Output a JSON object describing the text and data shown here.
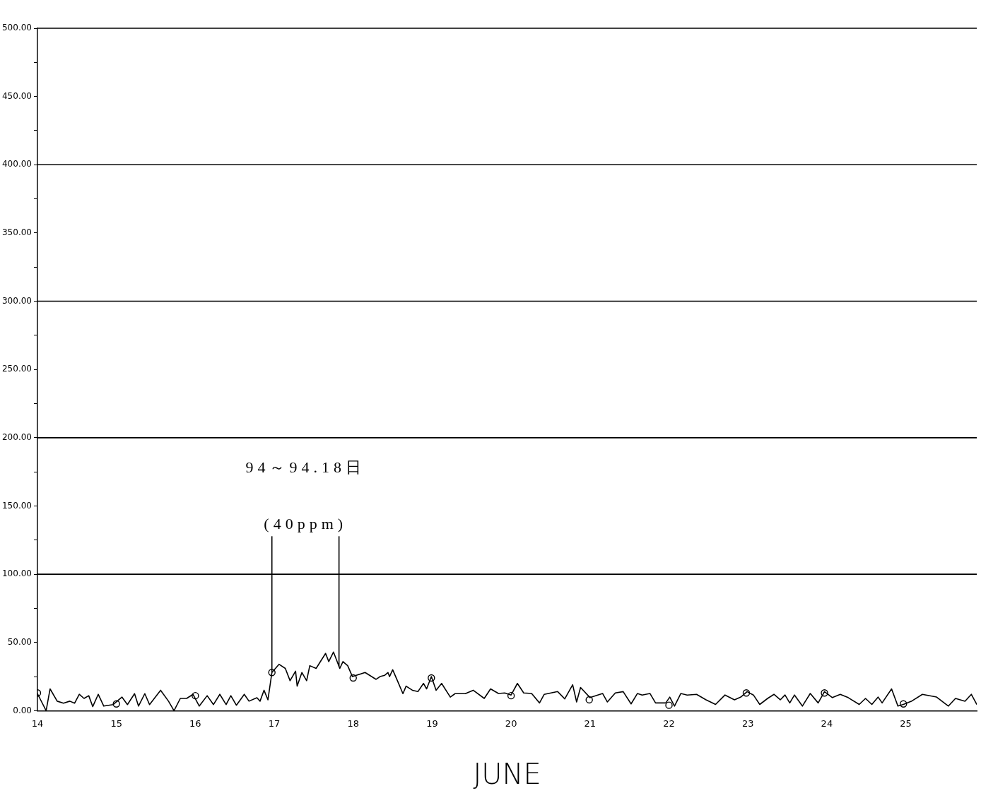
{
  "chart_data": {
    "type": "line",
    "xlabel": "JUNE",
    "xlim": [
      14,
      25.9
    ],
    "xticks": [
      14,
      15,
      16,
      17,
      18,
      19,
      20,
      21,
      22,
      23,
      24,
      25
    ],
    "ylim": [
      0,
      500
    ],
    "yticks": [
      {
        "value": 0,
        "label": "0.00"
      },
      {
        "value": 25,
        "label": null
      },
      {
        "value": 50,
        "label": "50.00"
      },
      {
        "value": 75,
        "label": null
      },
      {
        "value": 100,
        "label": "100.00"
      },
      {
        "value": 125,
        "label": null
      },
      {
        "value": 150,
        "label": "150.00"
      },
      {
        "value": 175,
        "label": null
      },
      {
        "value": 200,
        "label": "200.00"
      },
      {
        "value": 225,
        "label": null
      },
      {
        "value": 250,
        "label": "250.00"
      },
      {
        "value": 275,
        "label": null
      },
      {
        "value": 300,
        "label": "300.00"
      },
      {
        "value": 325,
        "label": null
      },
      {
        "value": 350,
        "label": "350.00"
      },
      {
        "value": 375,
        "label": null
      },
      {
        "value": 400,
        "label": "400.00"
      },
      {
        "value": 425,
        "label": null
      },
      {
        "value": 450,
        "label": "450.00"
      },
      {
        "value": 475,
        "label": null
      },
      {
        "value": 500,
        "label": "500.00"
      }
    ],
    "grid": false,
    "legend": false,
    "series": [
      {
        "type": "line",
        "color": "#000000",
        "marker": "none",
        "x": [
          14.0,
          14.11,
          14.16,
          14.25,
          14.33,
          14.41,
          14.47,
          14.53,
          14.59,
          14.65,
          14.7,
          14.77,
          14.84,
          14.96,
          15.07,
          15.14,
          15.23,
          15.28,
          15.36,
          15.42,
          15.56,
          15.66,
          15.73,
          15.81,
          15.89,
          15.97,
          16.05,
          16.15,
          16.23,
          16.31,
          16.39,
          16.45,
          16.52,
          16.62,
          16.68,
          16.78,
          16.82,
          16.87,
          16.92,
          16.97,
          17.06,
          17.14,
          17.2,
          17.27,
          17.29,
          17.35,
          17.41,
          17.45,
          17.53,
          17.65,
          17.69,
          17.75,
          17.83,
          17.87,
          17.93,
          17.99,
          18.15,
          18.29,
          18.34,
          18.4,
          18.44,
          18.46,
          18.5,
          18.56,
          18.63,
          18.67,
          18.75,
          18.82,
          18.89,
          18.93,
          18.99,
          19.05,
          19.12,
          19.23,
          19.29,
          19.42,
          19.52,
          19.66,
          19.74,
          19.84,
          19.92,
          20.0,
          20.08,
          20.16,
          20.26,
          20.36,
          20.42,
          20.59,
          20.68,
          20.78,
          20.83,
          20.88,
          21.0,
          21.16,
          21.22,
          21.32,
          21.42,
          21.52,
          21.6,
          21.66,
          21.76,
          21.83,
          21.96,
          22.01,
          22.07,
          22.15,
          22.23,
          22.35,
          22.47,
          22.59,
          22.71,
          22.83,
          22.91,
          22.99,
          23.07,
          23.15,
          23.25,
          23.33,
          23.41,
          23.47,
          23.53,
          23.59,
          23.69,
          23.79,
          23.89,
          23.97,
          24.07,
          24.17,
          24.27,
          24.41,
          24.49,
          24.57,
          24.65,
          24.7,
          24.82,
          24.9,
          24.97,
          25.07,
          25.21,
          25.39,
          25.54,
          25.63,
          25.75,
          25.83,
          25.9
        ],
        "values": [
          12.5,
          0,
          16,
          7,
          5.5,
          7,
          5.5,
          12,
          9,
          11,
          3,
          12,
          3.4,
          4.5,
          10,
          4.5,
          12.5,
          3.4,
          12.5,
          4.5,
          15,
          7,
          0,
          9,
          9,
          12,
          3.4,
          11,
          4.5,
          12,
          4.5,
          11,
          4,
          12,
          7,
          9.5,
          7,
          15,
          8,
          28,
          34,
          31,
          22,
          29,
          18,
          28,
          22,
          33,
          31,
          42,
          36,
          43,
          31,
          36,
          33,
          25,
          28,
          23,
          25,
          26,
          28,
          25,
          30,
          22,
          12.5,
          18,
          15,
          14,
          20,
          16,
          25,
          15,
          20,
          10,
          12.5,
          12.5,
          15,
          9,
          16,
          12.6,
          13,
          11.5,
          20,
          13,
          12.6,
          5.7,
          12,
          14,
          8.7,
          19,
          6.4,
          17,
          9.6,
          12.6,
          6.4,
          13,
          14,
          5,
          12.6,
          11.5,
          12.6,
          5.7,
          5.7,
          10,
          3.4,
          12.6,
          11.5,
          12,
          8,
          4.6,
          11.5,
          8,
          10,
          14,
          11.5,
          4.6,
          9,
          12,
          8,
          11.5,
          5.7,
          11.5,
          3.4,
          12.6,
          5.7,
          14,
          9.6,
          12,
          9.6,
          4.6,
          9,
          4.6,
          10,
          5.7,
          16,
          3.4,
          4.6,
          6.9,
          12,
          10,
          3.4,
          9,
          6.9,
          12,
          4.6
        ]
      },
      {
        "type": "scatter",
        "color": "#000000",
        "marker": "circle",
        "x": [
          14.0,
          15.0,
          16.0,
          16.97,
          18.0,
          18.99,
          20.0,
          20.99,
          22.0,
          22.98,
          23.97,
          24.97
        ],
        "values": [
          13,
          5,
          11,
          28,
          24,
          24,
          11,
          8,
          4,
          13,
          13,
          5
        ]
      }
    ],
    "ref_lines": [
      {
        "axis": "y",
        "value": 100
      },
      {
        "axis": "y",
        "value": 200
      },
      {
        "axis": "y",
        "value": 300
      },
      {
        "axis": "y",
        "value": 400
      },
      {
        "axis": "x",
        "value": 16.97
      },
      {
        "axis": "x",
        "value": 17.82
      }
    ],
    "annotations": [
      "94～94.18日",
      "(40ppm)"
    ]
  }
}
